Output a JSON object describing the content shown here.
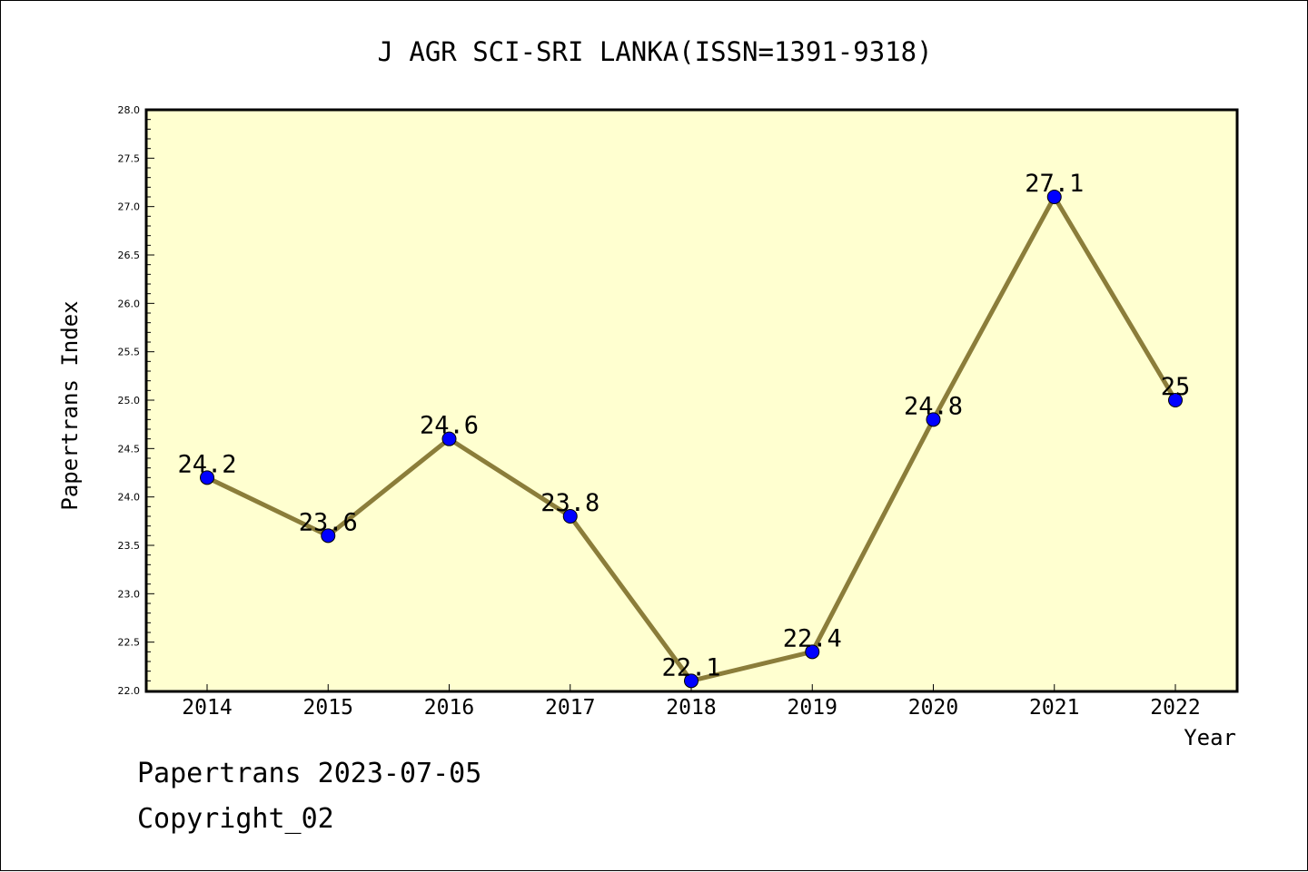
{
  "chart_data": {
    "type": "line",
    "title": "J AGR SCI-SRI LANKA(ISSN=1391-9318)",
    "xlabel": "Year",
    "ylabel": "Papertrans Index",
    "categories": [
      "2014",
      "2015",
      "2016",
      "2017",
      "2018",
      "2019",
      "2020",
      "2021",
      "2022"
    ],
    "series": [
      {
        "values": [
          24.2,
          23.6,
          24.6,
          23.8,
          22.1,
          22.4,
          24.8,
          27.1,
          25
        ],
        "labels": [
          "24.2",
          "23.6",
          "24.6",
          "23.8",
          "22.1",
          "22.4",
          "24.8",
          "27.1",
          "25"
        ]
      }
    ],
    "ylim": [
      22.0,
      28.0
    ],
    "yticks": [
      "22.0",
      "22.5",
      "23.0",
      "23.5",
      "24.0",
      "24.5",
      "25.0",
      "25.5",
      "26.0",
      "26.5",
      "27.0",
      "27.5",
      "28.0"
    ],
    "grid": false,
    "colors": {
      "plot_background": "#ffffd0",
      "line": "#8b7d3a",
      "marker": "#0000ff"
    }
  },
  "footer": {
    "line1": "Papertrans 2023-07-05",
    "line2": "Copyright_02"
  }
}
